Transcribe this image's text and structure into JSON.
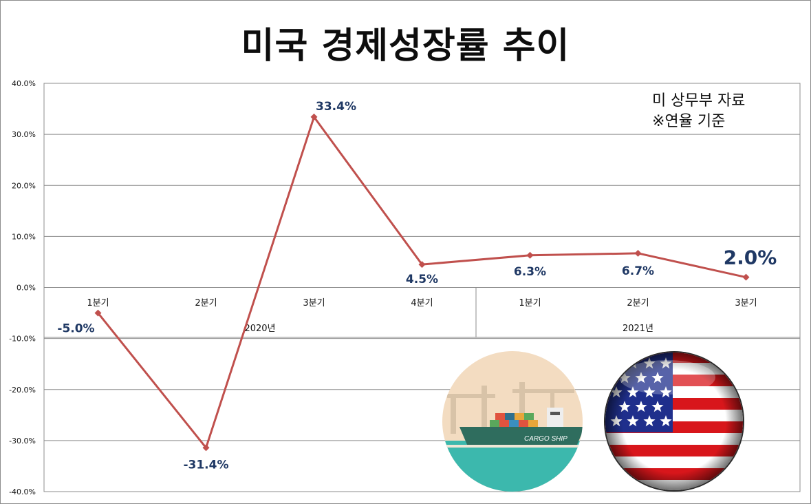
{
  "title": "미국 경제성장률 추이",
  "notes": [
    "미 상무부 자료",
    "※연율 기준"
  ],
  "chart_data": {
    "type": "line",
    "ylim": [
      -40,
      40
    ],
    "yticks": [
      -40,
      -30,
      -20,
      -10,
      0,
      10,
      20,
      30,
      40
    ],
    "ytick_labels": [
      "-40.0%",
      "-30.0%",
      "-20.0%",
      "-10.0%",
      "0.0%",
      "10.0%",
      "20.0%",
      "30.0%",
      "40.0%"
    ],
    "categories": [
      "1분기",
      "2분기",
      "3분기",
      "4분기",
      "1분기",
      "2분기",
      "3분기"
    ],
    "groups": [
      {
        "label": "2020년",
        "span": 4
      },
      {
        "label": "2021년",
        "span": 3
      }
    ],
    "values": [
      -5.0,
      -31.4,
      33.4,
      4.5,
      6.3,
      6.7,
      2.0
    ],
    "data_labels": [
      "-5.0%",
      "-31.4%",
      "33.4%",
      "4.5%",
      "6.3%",
      "6.7%",
      "2.0%"
    ],
    "grid": true,
    "colors": {
      "line": "#c0504d",
      "label": "#1f3864",
      "grid": "#8c8c8c"
    }
  }
}
